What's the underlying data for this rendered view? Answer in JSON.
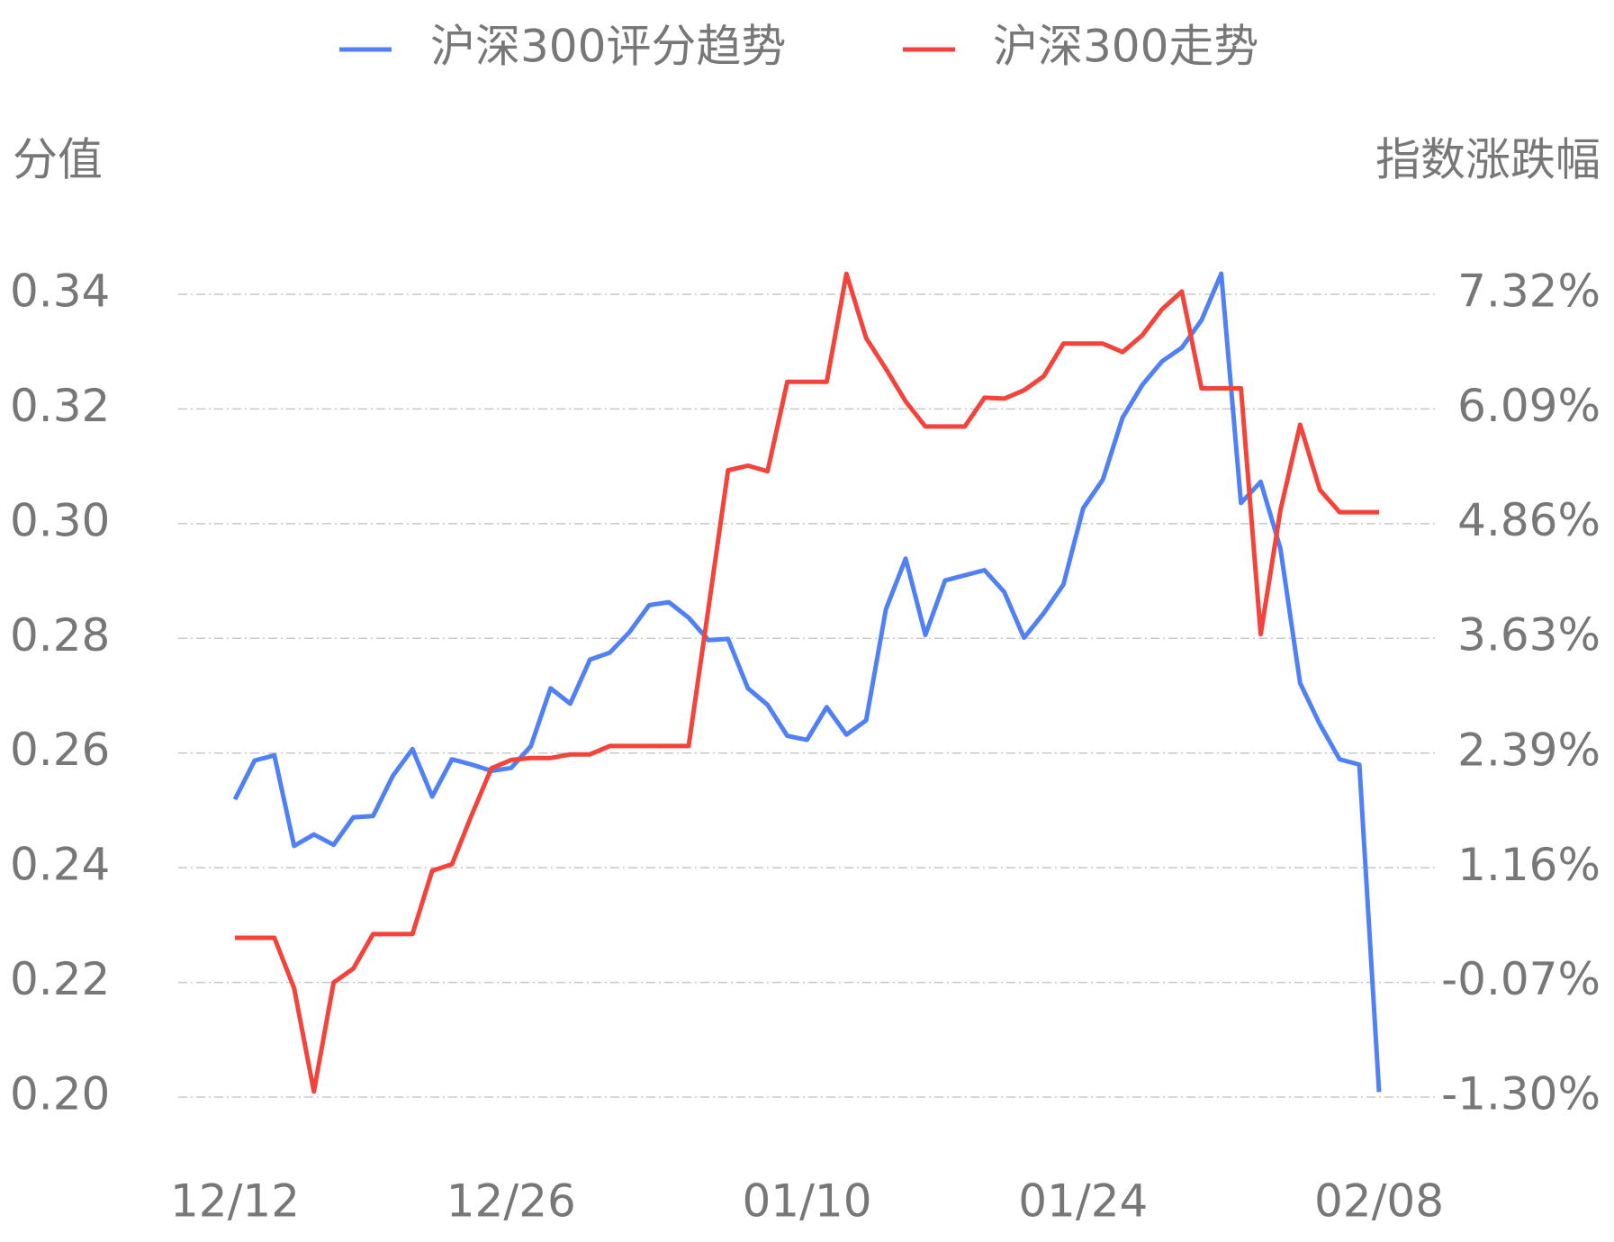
{
  "chart_data": {
    "type": "line",
    "y_label": "分值",
    "y2_label": "指数涨跌幅",
    "categories": [
      "12/12",
      null,
      null,
      null,
      null,
      null,
      null,
      null,
      null,
      null,
      null,
      null,
      null,
      null,
      "12/26",
      null,
      null,
      null,
      null,
      null,
      null,
      null,
      null,
      null,
      null,
      null,
      null,
      null,
      null,
      "01/10",
      null,
      null,
      null,
      null,
      null,
      null,
      null,
      null,
      null,
      null,
      null,
      null,
      null,
      "01/24",
      null,
      null,
      null,
      null,
      null,
      null,
      null,
      null,
      null,
      null,
      null,
      null,
      null,
      null,
      "02/08"
    ],
    "series": [
      {
        "name": "沪深300评分趋势",
        "color": "#4f80f6",
        "values": [
          0.2519,
          0.2587,
          0.2596,
          0.2438,
          0.2458,
          0.244,
          0.2488,
          0.249,
          0.256,
          0.2607,
          0.2524,
          0.2589,
          0.258,
          0.2569,
          0.2574,
          0.2612,
          0.2713,
          0.2686,
          0.2763,
          0.2775,
          0.2811,
          0.2858,
          0.2863,
          0.2836,
          0.2797,
          0.2799,
          0.2713,
          0.2684,
          0.263,
          0.2623,
          0.268,
          0.2632,
          0.2657,
          0.2851,
          0.2939,
          0.2806,
          0.2901,
          0.291,
          0.2919,
          0.2881,
          0.2801,
          0.2844,
          0.2894,
          0.3027,
          0.3077,
          0.3185,
          0.3242,
          0.3283,
          0.3307,
          0.3355,
          0.3436,
          0.3036,
          0.3073,
          0.2957,
          0.2722,
          0.265,
          0.2589,
          0.258,
          0.2009
        ]
      },
      {
        "name": "沪深300走势",
        "color": "#f4433a",
        "axis": "y2",
        "values": [
          0.41,
          0.41,
          0.41,
          -0.13,
          -1.24,
          -0.07,
          0.08,
          0.45,
          0.45,
          0.45,
          1.13,
          1.2,
          1.73,
          2.23,
          2.32,
          2.34,
          2.34,
          2.38,
          2.38,
          2.47,
          2.47,
          2.47,
          2.47,
          2.47,
          3.94,
          5.43,
          5.48,
          5.42,
          6.38,
          6.38,
          6.38,
          7.54,
          6.85,
          6.52,
          6.17,
          5.9,
          5.9,
          5.9,
          6.21,
          6.2,
          6.29,
          6.44,
          6.79,
          6.79,
          6.79,
          6.7,
          6.88,
          7.16,
          7.35,
          6.31,
          6.31,
          6.31,
          3.67,
          5.0,
          5.92,
          5.22,
          4.98,
          4.98,
          4.98
        ]
      }
    ],
    "ylim": [
      0.2,
      0.34
    ],
    "yticks": [
      {
        "value": 0.2,
        "label": "0.20"
      },
      {
        "value": 0.22,
        "label": "0.22"
      },
      {
        "value": 0.24,
        "label": "0.24"
      },
      {
        "value": 0.26,
        "label": "0.26"
      },
      {
        "value": 0.28,
        "label": "0.28"
      },
      {
        "value": 0.3,
        "label": "0.30"
      },
      {
        "value": 0.32,
        "label": "0.32"
      },
      {
        "value": 0.34,
        "label": "0.34"
      }
    ],
    "y2lim": [
      -1.3,
      7.32
    ],
    "y2ticks": [
      {
        "value": -1.3,
        "label": "-1.30%"
      },
      {
        "value": -0.07,
        "label": "-0.07%"
      },
      {
        "value": 1.16,
        "label": "1.16%"
      },
      {
        "value": 2.39,
        "label": "2.39%"
      },
      {
        "value": 3.63,
        "label": "3.63%"
      },
      {
        "value": 4.86,
        "label": "4.86%"
      },
      {
        "value": 6.09,
        "label": "6.09%"
      },
      {
        "value": 7.32,
        "label": "7.32%"
      }
    ],
    "grid": true
  }
}
